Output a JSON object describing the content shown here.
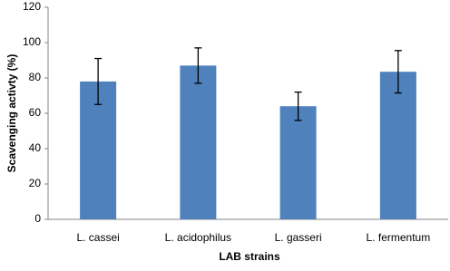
{
  "chart_data": {
    "type": "bar",
    "x_label": "LAB strains",
    "y_label": "Scavenging activty (%)",
    "categories": [
      "L. cassei",
      "L. acidophilus",
      "L. gasseri",
      "L. fermentum"
    ],
    "values": [
      78,
      87,
      64,
      83.5
    ],
    "errors": [
      13,
      10,
      8,
      12
    ],
    "color": "#4f81bd",
    "ylim": [
      0,
      120
    ],
    "yticks": [
      0,
      20,
      40,
      60,
      80,
      100,
      120
    ],
    "grid": false
  }
}
